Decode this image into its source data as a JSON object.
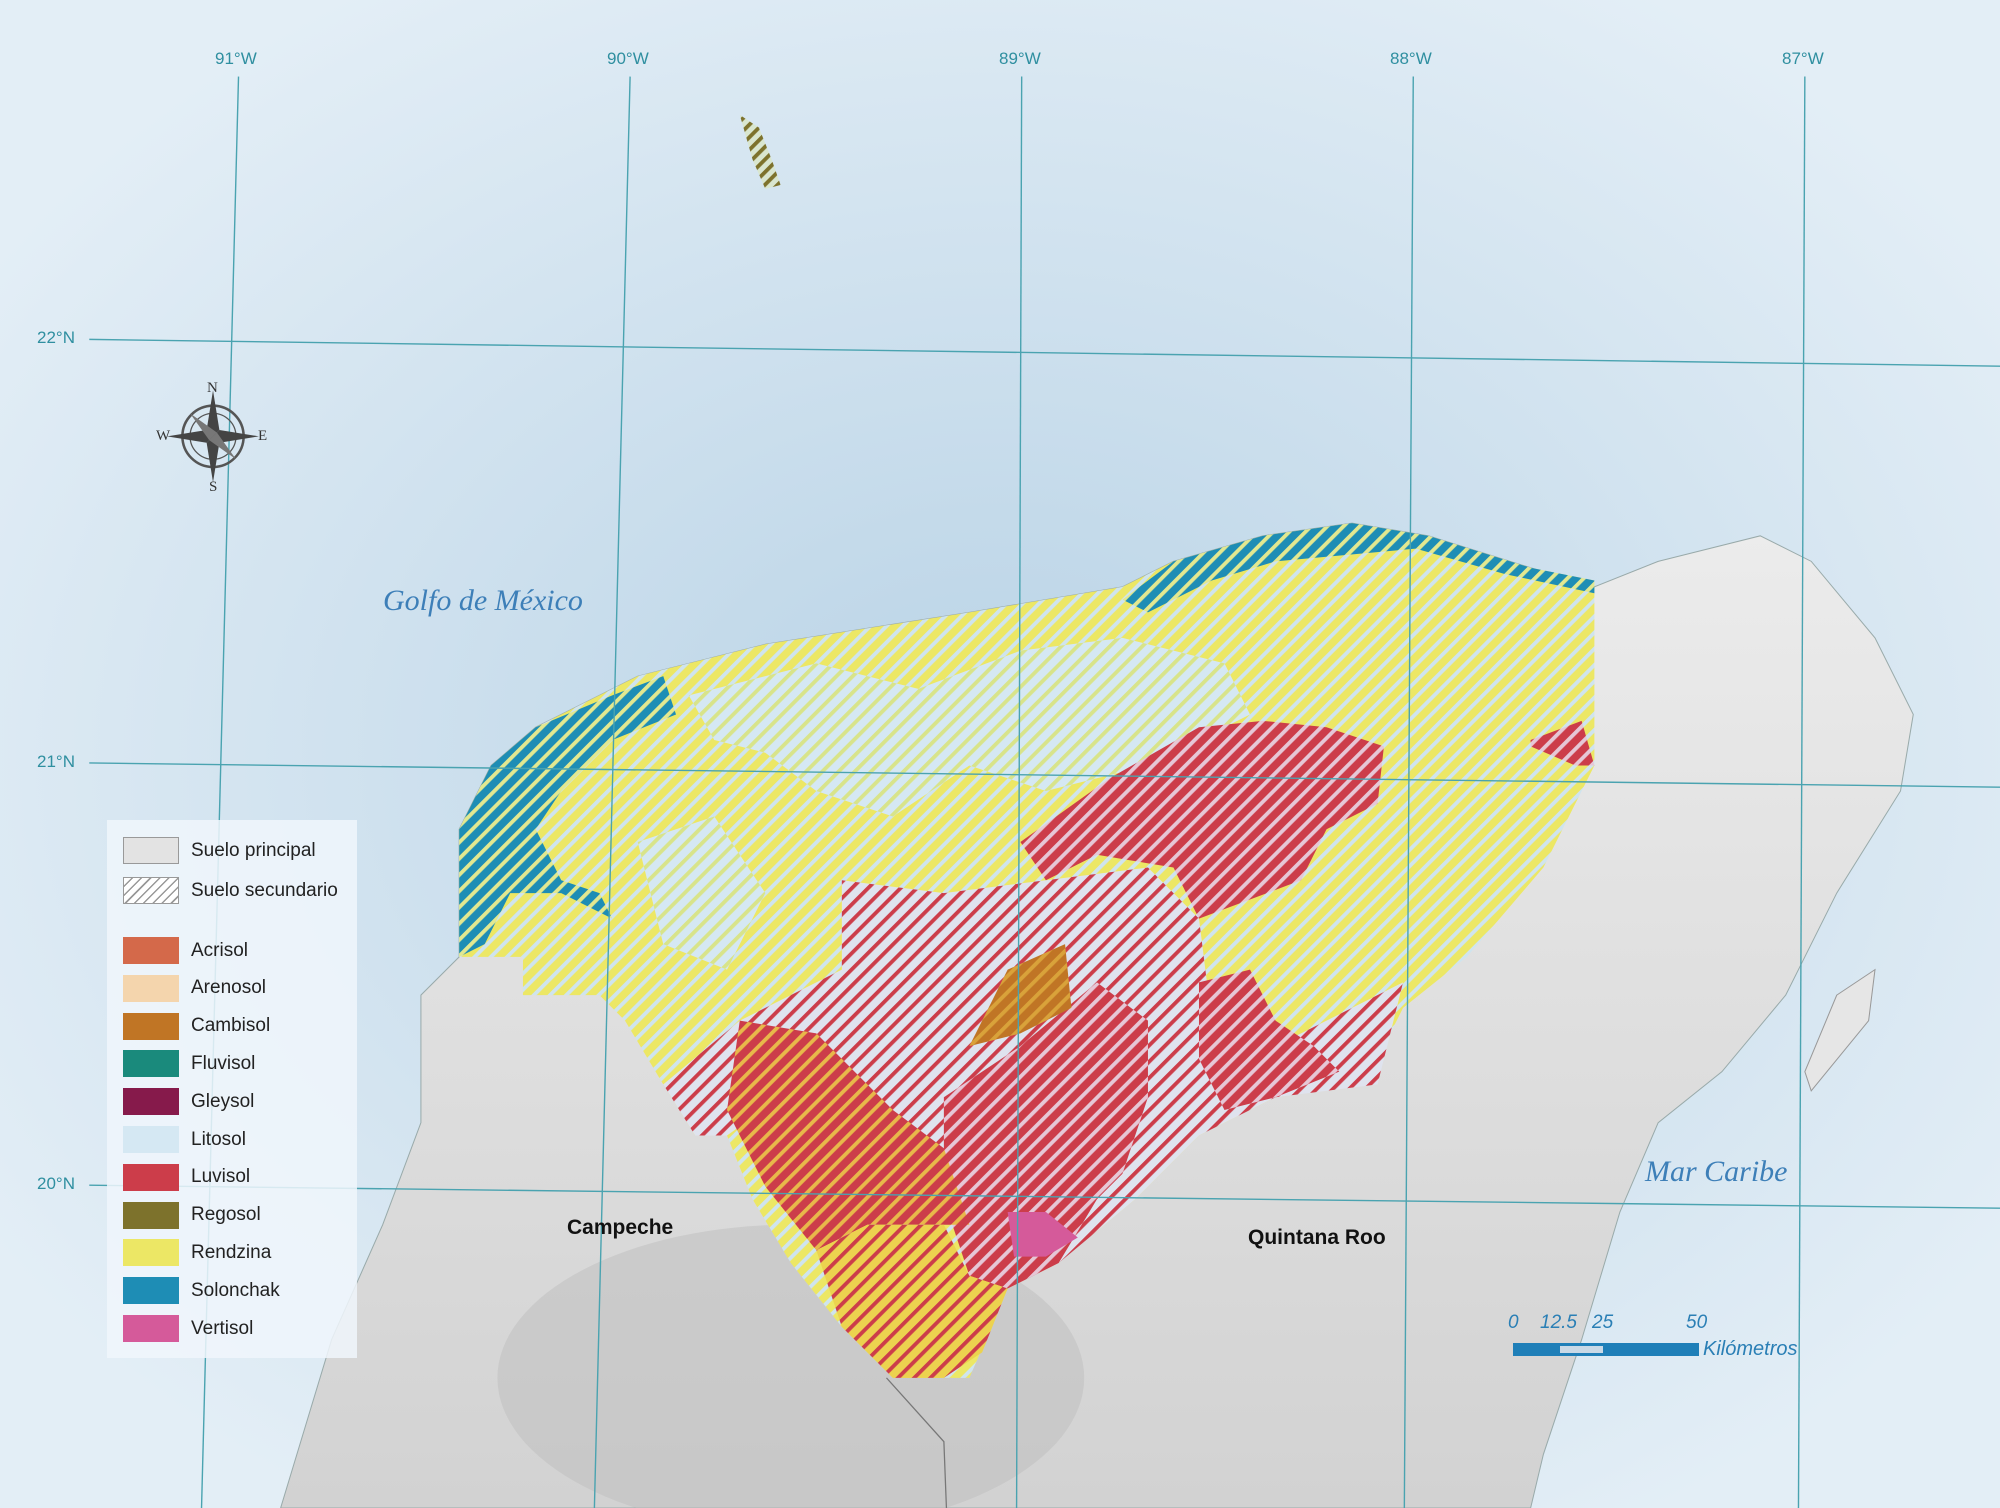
{
  "grid": {
    "longitudes": [
      "91°W",
      "90°W",
      "89°W",
      "88°W",
      "87°W"
    ],
    "latitudes": [
      "22°N",
      "21°N",
      "20°N"
    ]
  },
  "places": {
    "gulf": "Golfo de México",
    "caribbean": "Mar Caribe",
    "campeche": "Campeche",
    "quintana_roo": "Quintana Roo"
  },
  "compass": {
    "n": "N",
    "s": "S",
    "e": "E",
    "w": "W"
  },
  "legend": {
    "principal": "Suelo principal",
    "secundario": "Suelo secundario",
    "soils": [
      {
        "label": "Acrisol",
        "color": "#d4694a"
      },
      {
        "label": "Arenosol",
        "color": "#f4d5ad"
      },
      {
        "label": "Cambisol",
        "color": "#c07525"
      },
      {
        "label": "Fluvisol",
        "color": "#1a8a7c"
      },
      {
        "label": "Gleysol",
        "color": "#861a4b"
      },
      {
        "label": "Litosol",
        "color": "#d5e8f3"
      },
      {
        "label": "Luvisol",
        "color": "#cc3d4a"
      },
      {
        "label": "Regosol",
        "color": "#7d722c"
      },
      {
        "label": "Rendzina",
        "color": "#ece765"
      },
      {
        "label": "Solonchak",
        "color": "#1e8db5"
      },
      {
        "label": "Vertisol",
        "color": "#d55a9a"
      }
    ]
  },
  "scale_bar": {
    "ticks": [
      "0",
      "12.5",
      "25",
      "50"
    ],
    "unit": "Kilómetros"
  }
}
